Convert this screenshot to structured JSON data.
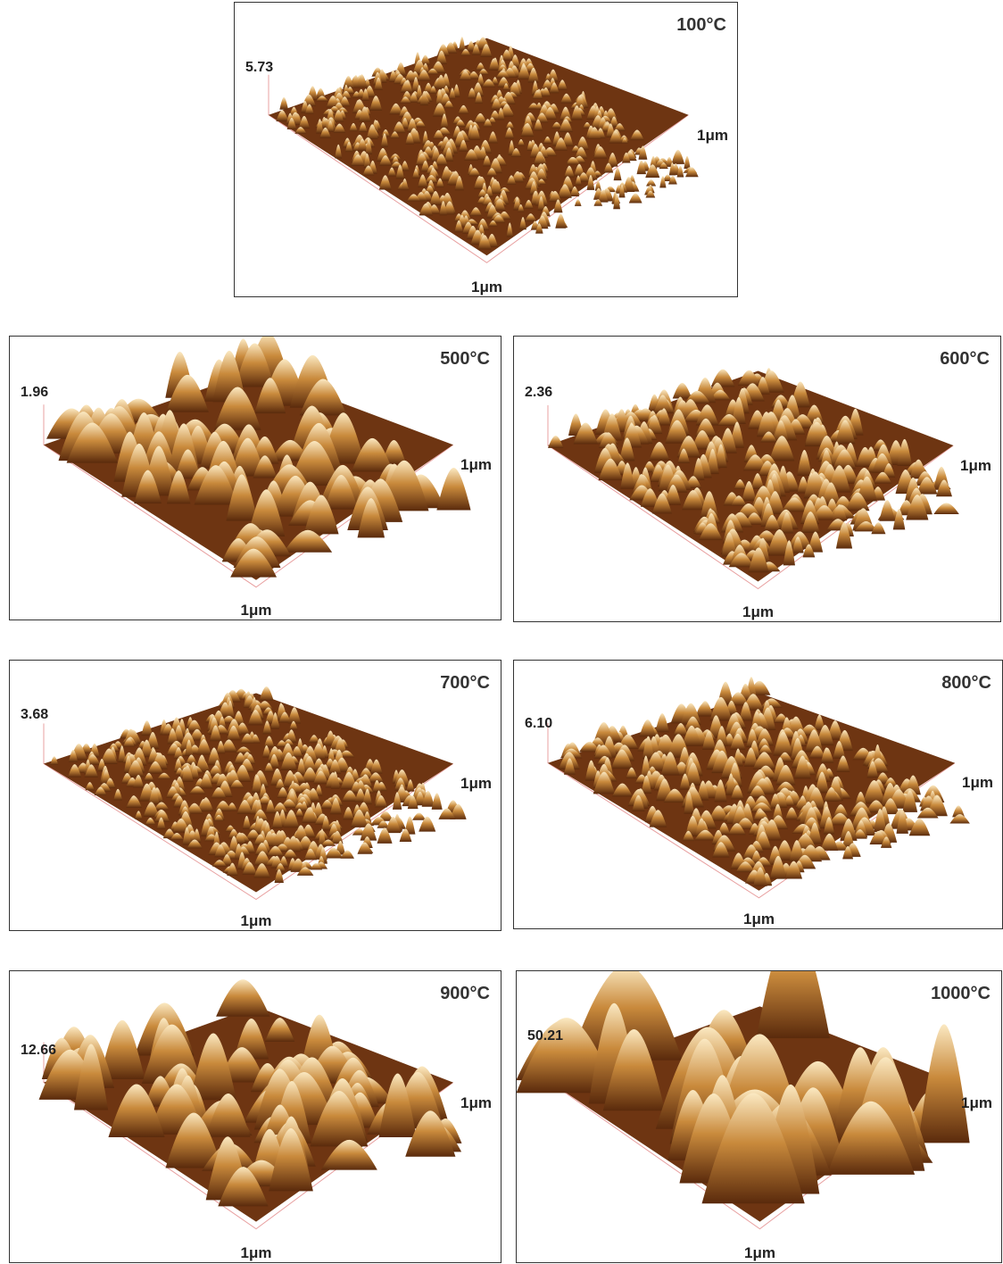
{
  "panels": [
    {
      "temperature": "100°C",
      "z_max": "5.73",
      "right_label": "1μm",
      "bottom_label": "1μm"
    },
    {
      "temperature": "500°C",
      "z_max": "1.96",
      "right_label": "1μm",
      "bottom_label": "1μm"
    },
    {
      "temperature": "600°C",
      "z_max": "2.36",
      "right_label": "1μm",
      "bottom_label": "1μm"
    },
    {
      "temperature": "700°C",
      "z_max": "3.68",
      "right_label": "1μm",
      "bottom_label": "1μm"
    },
    {
      "temperature": "800°C",
      "z_max": "6.10",
      "right_label": "1μm",
      "bottom_label": "1μm"
    },
    {
      "temperature": "900°C",
      "z_max": "12.66",
      "right_label": "1μm",
      "bottom_label": "1μm"
    },
    {
      "temperature": "1000°C",
      "z_max": "50.21",
      "right_label": "1μm",
      "bottom_label": "1μm"
    }
  ]
}
